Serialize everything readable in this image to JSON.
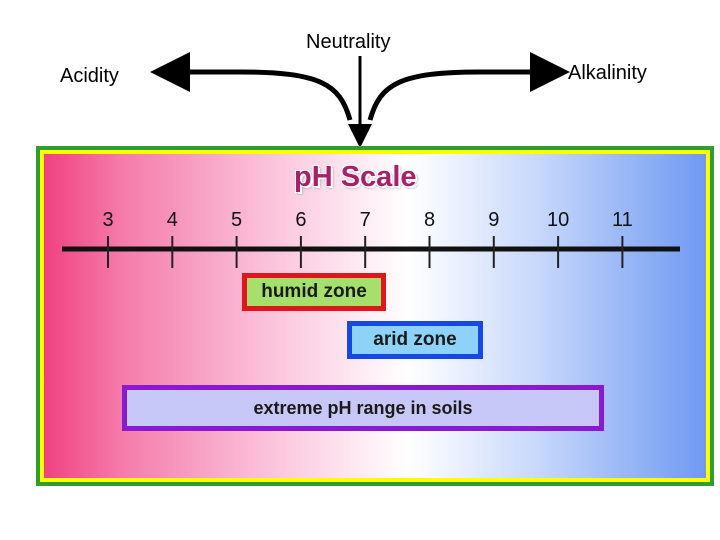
{
  "labels": {
    "neutrality": "Neutrality",
    "acidity": "Acidity",
    "alkalinity": "Alkalinity"
  },
  "title": "pH Scale",
  "scale": {
    "ticks": [
      "3",
      "4",
      "5",
      "6",
      "7",
      "8",
      "9",
      "10",
      "11"
    ]
  },
  "zones": {
    "humid": "humid zone",
    "arid": "arid zone",
    "extreme": "extreme pH range in soils"
  },
  "colors": {
    "frame_green": "#2e9e2e",
    "frame_yellow": "#ffff00",
    "acid_pink": "#f0427f",
    "alkaline_blue": "#6f99f2",
    "title": "#a8206a",
    "humid_border": "#e0161c",
    "humid_fill": "#a6e06c",
    "arid_border": "#1648e6",
    "arid_fill": "#8fd2f8",
    "extreme_border": "#8a1ad0",
    "extreme_fill": "#c8c8f8"
  }
}
